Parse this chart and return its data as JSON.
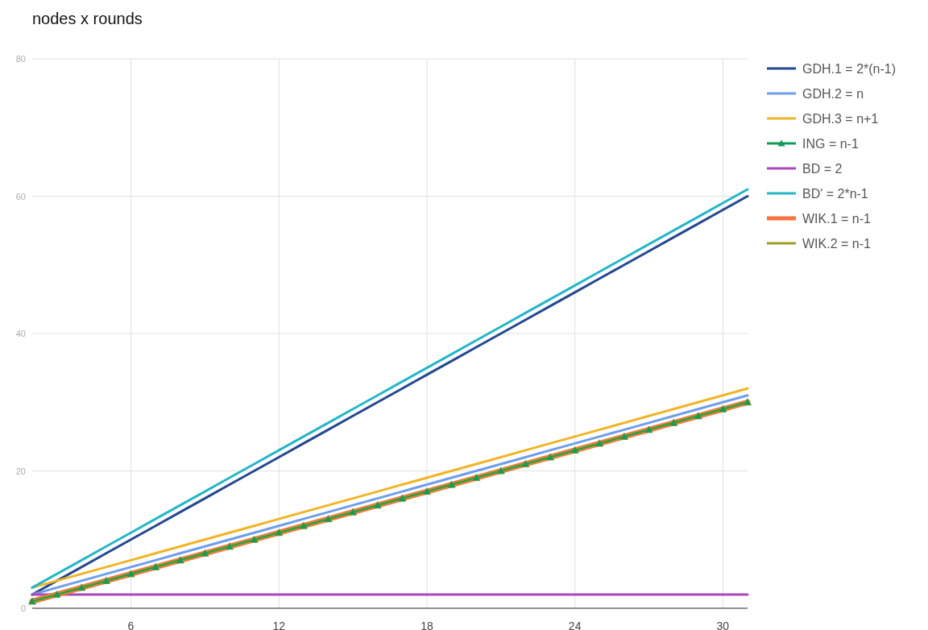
{
  "chart_data": {
    "type": "line",
    "title": "nodes x rounds",
    "x": [
      2,
      3,
      4,
      5,
      6,
      7,
      8,
      9,
      10,
      11,
      12,
      13,
      14,
      15,
      16,
      17,
      18,
      19,
      20,
      21,
      22,
      23,
      24,
      25,
      26,
      27,
      28,
      29,
      30,
      31
    ],
    "xlim": [
      2,
      31
    ],
    "xticks": [
      6,
      12,
      18,
      24,
      30
    ],
    "ylim": [
      0,
      80
    ],
    "yticks": [
      0,
      20,
      40,
      60,
      80
    ],
    "grid": true,
    "legend": "right",
    "series": [
      {
        "name": "GDH.1 = 2*(n-1)",
        "color": "#24478f",
        "values": [
          2,
          4,
          6,
          8,
          10,
          12,
          14,
          16,
          18,
          20,
          22,
          24,
          26,
          28,
          30,
          32,
          34,
          36,
          38,
          40,
          42,
          44,
          46,
          48,
          50,
          52,
          54,
          56,
          58,
          60
        ]
      },
      {
        "name": "GDH.2 = n",
        "color": "#6d9eeb",
        "values": [
          2,
          3,
          4,
          5,
          6,
          7,
          8,
          9,
          10,
          11,
          12,
          13,
          14,
          15,
          16,
          17,
          18,
          19,
          20,
          21,
          22,
          23,
          24,
          25,
          26,
          27,
          28,
          29,
          30,
          31
        ]
      },
      {
        "name": "GDH.3 = n+1",
        "color": "#f1b425",
        "values": [
          3,
          4,
          5,
          6,
          7,
          8,
          9,
          10,
          11,
          12,
          13,
          14,
          15,
          16,
          17,
          18,
          19,
          20,
          21,
          22,
          23,
          24,
          25,
          26,
          27,
          28,
          29,
          30,
          31,
          32
        ]
      },
      {
        "name": "ING = n-1",
        "color": "#0f9d58",
        "marker": "triangle",
        "values": [
          1,
          2,
          3,
          4,
          5,
          6,
          7,
          8,
          9,
          10,
          11,
          12,
          13,
          14,
          15,
          16,
          17,
          18,
          19,
          20,
          21,
          22,
          23,
          24,
          25,
          26,
          27,
          28,
          29,
          30
        ]
      },
      {
        "name": "BD = 2",
        "color": "#ab47bc",
        "values": [
          2,
          2,
          2,
          2,
          2,
          2,
          2,
          2,
          2,
          2,
          2,
          2,
          2,
          2,
          2,
          2,
          2,
          2,
          2,
          2,
          2,
          2,
          2,
          2,
          2,
          2,
          2,
          2,
          2,
          2
        ]
      },
      {
        "name": "BD' = 2*n-1",
        "color": "#26b6c6",
        "values": [
          3,
          5,
          7,
          9,
          11,
          13,
          15,
          17,
          19,
          21,
          23,
          25,
          27,
          29,
          31,
          33,
          35,
          37,
          39,
          41,
          43,
          45,
          47,
          49,
          51,
          53,
          55,
          57,
          59,
          61
        ]
      },
      {
        "name": "WIK.1 = n-1",
        "color": "#ff7043",
        "values": [
          1,
          2,
          3,
          4,
          5,
          6,
          7,
          8,
          9,
          10,
          11,
          12,
          13,
          14,
          15,
          16,
          17,
          18,
          19,
          20,
          21,
          22,
          23,
          24,
          25,
          26,
          27,
          28,
          29,
          30
        ]
      },
      {
        "name": "WIK.2 = n-1",
        "color": "#9e9d24",
        "values": [
          1,
          2,
          3,
          4,
          5,
          6,
          7,
          8,
          9,
          10,
          11,
          12,
          13,
          14,
          15,
          16,
          17,
          18,
          19,
          20,
          21,
          22,
          23,
          24,
          25,
          26,
          27,
          28,
          29,
          30
        ]
      }
    ]
  }
}
